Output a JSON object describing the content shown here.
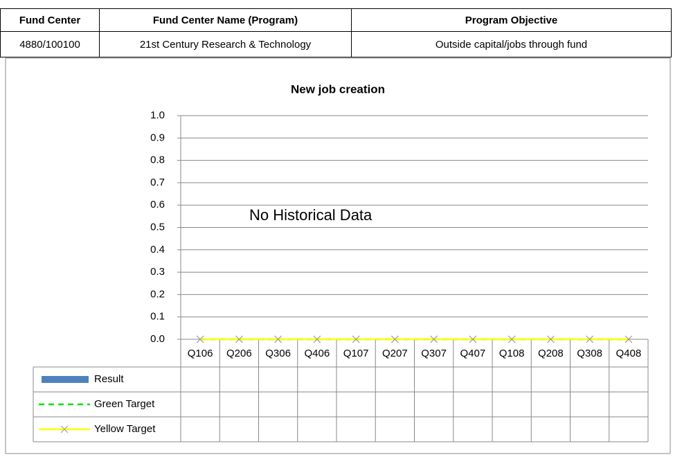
{
  "table": {
    "header": [
      "Fund Center",
      "Fund Center Name (Program)",
      "Program Objective"
    ],
    "rows": [
      [
        "4880/100100",
        "21st Century Research & Technology",
        "Outside capital/jobs through fund"
      ]
    ]
  },
  "chart_data": {
    "type": "combo",
    "title": "New job creation",
    "annotation": "No Historical Data",
    "categories": [
      "Q106",
      "Q206",
      "Q306",
      "Q406",
      "Q107",
      "Q207",
      "Q307",
      "Q407",
      "Q108",
      "Q208",
      "Q308",
      "Q408"
    ],
    "series": [
      {
        "name": "Result",
        "type": "bar",
        "color": "#4f81bd",
        "values": [
          null,
          null,
          null,
          null,
          null,
          null,
          null,
          null,
          null,
          null,
          null,
          null
        ]
      },
      {
        "name": "Green Target",
        "type": "line",
        "linestyle": "dashed",
        "color": "#00e000",
        "values": [
          0,
          0,
          0,
          0,
          0,
          0,
          0,
          0,
          0,
          0,
          0,
          0
        ]
      },
      {
        "name": "Yellow Target",
        "type": "line",
        "linestyle": "solid",
        "marker": "x",
        "color": "#ffff00",
        "values": [
          0,
          0,
          0,
          0,
          0,
          0,
          0,
          0,
          0,
          0,
          0,
          0
        ]
      }
    ],
    "ylim": [
      0,
      1
    ],
    "yticks": [
      {
        "value": 0,
        "label": "0.0"
      },
      0.1,
      0.2,
      0.3,
      0.4,
      0.5,
      0.6,
      0.7,
      0.8,
      0.9,
      {
        "value": 1,
        "label": "1.0"
      }
    ],
    "grid": true
  }
}
